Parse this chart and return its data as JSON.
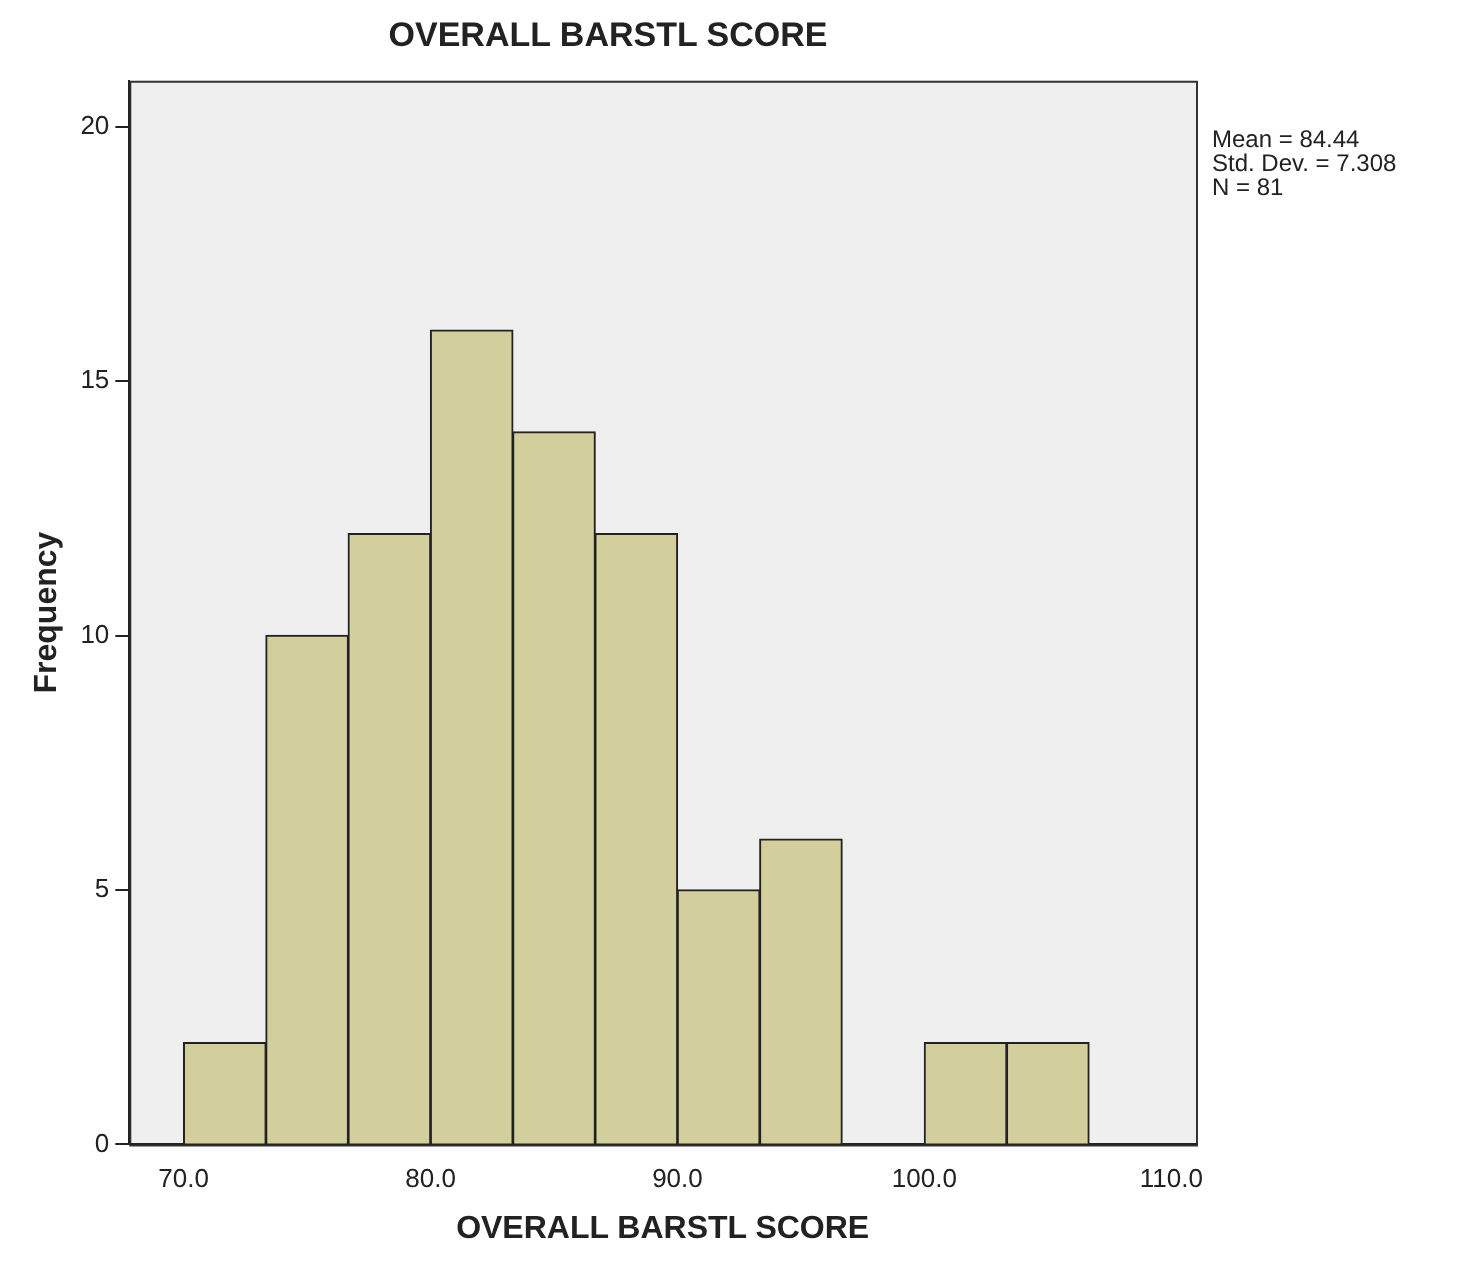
{
  "chart_data": {
    "type": "histogram",
    "title": "OVERALL BARSTL SCORE",
    "xlabel": "OVERALL BARSTL SCORE",
    "ylabel": "Frequency",
    "bins": [
      70,
      73.333,
      76.667,
      80,
      83.333,
      86.667,
      90,
      93.333,
      96.667,
      100,
      103.333,
      106.667
    ],
    "values": [
      2,
      10,
      12,
      16,
      14,
      12,
      5,
      6,
      0,
      2,
      2
    ],
    "color": "#d3cf9c",
    "xlim": [
      67.8,
      111
    ],
    "xticks": [
      {
        "value": 70,
        "label": "70.0"
      },
      {
        "value": 80,
        "label": "80.0"
      },
      {
        "value": 90,
        "label": "90.0"
      },
      {
        "value": 100,
        "label": "100.0"
      },
      {
        "value": 110,
        "label": "110.0"
      }
    ],
    "ylim": [
      0,
      20.9
    ],
    "yticks": [
      0,
      5,
      10,
      15,
      20
    ],
    "annotations": [
      "Mean = 84.44",
      "Std. Dev. = 7.308",
      "N = 81"
    ],
    "grid": false,
    "legend": false
  }
}
